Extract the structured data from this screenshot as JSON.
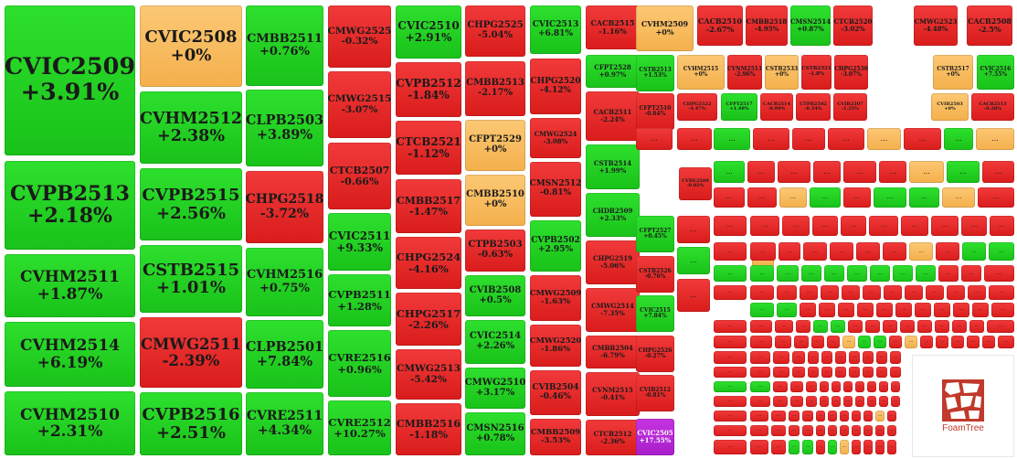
{
  "colors": {
    "green": "#22d022",
    "red": "#e62a2a",
    "orange": "#f8bd5e",
    "purple": "#b928d6"
  },
  "ellipsis": "...",
  "logo": {
    "label": "FoamTree",
    "icon": "foamtree-logo-icon"
  },
  "cells": [
    {
      "code": "CVIC2509",
      "change": "+3.91%",
      "color": "green"
    },
    {
      "code": "CVPB2513",
      "change": "+2.18%",
      "color": "green"
    },
    {
      "code": "CVHM2511",
      "change": "+1.87%",
      "color": "green"
    },
    {
      "code": "CVHM2514",
      "change": "+6.19%",
      "color": "green"
    },
    {
      "code": "CVHM2510",
      "change": "+2.31%",
      "color": "green"
    },
    {
      "code": "CVIC2508",
      "change": "+0%",
      "color": "orange"
    },
    {
      "code": "CVHM2512",
      "change": "+2.38%",
      "color": "green"
    },
    {
      "code": "CVPB2515",
      "change": "+2.56%",
      "color": "green"
    },
    {
      "code": "CSTB2515",
      "change": "+1.01%",
      "color": "green"
    },
    {
      "code": "CMWG2511",
      "change": "-2.39%",
      "color": "red"
    },
    {
      "code": "CVPB2516",
      "change": "+2.51%",
      "color": "green"
    },
    {
      "code": "CMBB2511",
      "change": "+0.76%",
      "color": "green"
    },
    {
      "code": "CLPB2503",
      "change": "+3.89%",
      "color": "green"
    },
    {
      "code": "CHPG2518",
      "change": "-3.72%",
      "color": "red"
    },
    {
      "code": "CVHM2516",
      "change": "+0.75%",
      "color": "green"
    },
    {
      "code": "CLPB2501",
      "change": "+7.84%",
      "color": "green"
    },
    {
      "code": "CVRE2511",
      "change": "+4.34%",
      "color": "green"
    },
    {
      "code": "CMWG2525",
      "change": "-0.32%",
      "color": "red"
    },
    {
      "code": "CMWG2515",
      "change": "-3.07%",
      "color": "red"
    },
    {
      "code": "CTCB2507",
      "change": "-0.66%",
      "color": "red"
    },
    {
      "code": "CVIC2511",
      "change": "+9.33%",
      "color": "green"
    },
    {
      "code": "CVPB2511",
      "change": "+1.28%",
      "color": "green"
    },
    {
      "code": "CVRE2516",
      "change": "+0.96%",
      "color": "green"
    },
    {
      "code": "CVRE2512",
      "change": "+10.27%",
      "color": "green"
    },
    {
      "code": "CVIC2510",
      "change": "+2.91%",
      "color": "green"
    },
    {
      "code": "CVPB2512",
      "change": "-1.84%",
      "color": "red"
    },
    {
      "code": "CTCB2521",
      "change": "-1.12%",
      "color": "red"
    },
    {
      "code": "CMBB2517",
      "change": "-1.47%",
      "color": "red"
    },
    {
      "code": "CHPG2524",
      "change": "-4.16%",
      "color": "red"
    },
    {
      "code": "CHPG2517",
      "change": "-2.26%",
      "color": "red"
    },
    {
      "code": "CMWG2513",
      "change": "-5.42%",
      "color": "red"
    },
    {
      "code": "CMBB2516",
      "change": "-1.18%",
      "color": "red"
    },
    {
      "code": "CHPG2525",
      "change": "-5.04%",
      "color": "red"
    },
    {
      "code": "CMBB2513",
      "change": "-2.17%",
      "color": "red"
    },
    {
      "code": "CFPT2529",
      "change": "+0%",
      "color": "orange"
    },
    {
      "code": "CMBB2510",
      "change": "+0%",
      "color": "orange"
    },
    {
      "code": "CTPB2503",
      "change": "-0.63%",
      "color": "red"
    },
    {
      "code": "CVIB2508",
      "change": "+0.5%",
      "color": "green"
    },
    {
      "code": "CVIC2514",
      "change": "+2.26%",
      "color": "green"
    },
    {
      "code": "CMWG2510",
      "change": "+3.17%",
      "color": "green"
    },
    {
      "code": "CMSN2516",
      "change": "+0.78%",
      "color": "green"
    },
    {
      "code": "CVIC2513",
      "change": "+6.81%",
      "color": "green"
    },
    {
      "code": "CHPG2520",
      "change": "-4.12%",
      "color": "red"
    },
    {
      "code": "CMWG2524",
      "change": "-3.08%",
      "color": "red"
    },
    {
      "code": "CMSN2512",
      "change": "-0.81%",
      "color": "red"
    },
    {
      "code": "CVPB2502",
      "change": "+2.95%",
      "color": "green"
    },
    {
      "code": "CMWG2509",
      "change": "-1.63%",
      "color": "red"
    },
    {
      "code": "CMWG2520",
      "change": "-1.86%",
      "color": "red"
    },
    {
      "code": "CVIB2504",
      "change": "-0.46%",
      "color": "red"
    },
    {
      "code": "CMBB2509",
      "change": "-3.53%",
      "color": "red"
    },
    {
      "code": "CACB2515",
      "change": "-1.16%",
      "color": "red"
    },
    {
      "code": "CFPT2528",
      "change": "+0.97%",
      "color": "green"
    },
    {
      "code": "CACB2511",
      "change": "-2.24%",
      "color": "red"
    },
    {
      "code": "CSTB2514",
      "change": "+1.99%",
      "color": "green"
    },
    {
      "code": "CHDB2509",
      "change": "+2.33%",
      "color": "green"
    },
    {
      "code": "CHPG2519",
      "change": "-5.06%",
      "color": "red"
    },
    {
      "code": "CMWG2514",
      "change": "-7.35%",
      "color": "red"
    },
    {
      "code": "CMBB2504",
      "change": "-6.79%",
      "color": "red"
    },
    {
      "code": "CVNM2515",
      "change": "-0.41%",
      "color": "red"
    },
    {
      "code": "CTCB2512",
      "change": "-2.36%",
      "color": "red"
    },
    {
      "code": "CVHM2509",
      "change": "+0%",
      "color": "orange"
    },
    {
      "code": "CSTB2513",
      "change": "+1.53%",
      "color": "green"
    },
    {
      "code": "CFPT2510",
      "change": "-0.64%",
      "color": "red"
    },
    {
      "code": "CFPT2527",
      "change": "+0.45%",
      "color": "green"
    },
    {
      "code": "CSTB2526",
      "change": "-0.76%",
      "color": "red"
    },
    {
      "code": "CVIC2515",
      "change": "+7.84%",
      "color": "green"
    },
    {
      "code": "CHPG2526",
      "change": "-0.27%",
      "color": "red"
    },
    {
      "code": "CVIB2512",
      "change": "-0.81%",
      "color": "red"
    },
    {
      "code": "CVIC2505",
      "change": "+17.55%",
      "color": "purple"
    },
    {
      "code": "CACB2510",
      "change": "-2.67%",
      "color": "red"
    },
    {
      "code": "CMBB2518",
      "change": "-4.95%",
      "color": "red"
    },
    {
      "code": "CMSN2514",
      "change": "+0.87%",
      "color": "green"
    },
    {
      "code": "CTCB2520",
      "change": "-3.02%",
      "color": "red"
    },
    {
      "code": "CMWG2523",
      "change": "-4.48%",
      "color": "red"
    },
    {
      "code": "CACB2508",
      "change": "-2.5%",
      "color": "red"
    },
    {
      "code": "CVHM2515",
      "change": "+0%",
      "color": "orange"
    },
    {
      "code": "CVNM2511",
      "change": "-2.96%",
      "color": "red"
    },
    {
      "code": "CSTB2533",
      "change": "+0%",
      "color": "orange"
    },
    {
      "code": "CSTB2521",
      "change": "-1.8%",
      "color": "red"
    },
    {
      "code": "CHPG2530",
      "change": "-3.07%",
      "color": "red"
    },
    {
      "code": "CSTB2517",
      "change": "+0%",
      "color": "orange"
    },
    {
      "code": "CVIC2516",
      "change": "+7.55%",
      "color": "green"
    },
    {
      "code": "CHPG2522",
      "change": "-4.47%",
      "color": "red"
    },
    {
      "code": "CFPT2517",
      "change": "+1.48%",
      "color": "green"
    },
    {
      "code": "CACB2514",
      "change": "-0.99%",
      "color": "red"
    },
    {
      "code": "CTPB2502",
      "change": "-0.34%",
      "color": "red"
    },
    {
      "code": "CVIB2507",
      "change": "-1.25%",
      "color": "red"
    },
    {
      "code": "CVIB2503",
      "change": "+0%",
      "color": "orange"
    },
    {
      "code": "CACB2513",
      "change": "-0.28%",
      "color": "red"
    },
    {
      "code": "CVRE2509",
      "change": "-0.02%",
      "color": "red"
    }
  ],
  "small_cells": [
    "red",
    "orange",
    "red",
    "green",
    "red",
    "red",
    "green",
    "red",
    "red",
    "red",
    "orange",
    "red",
    "green",
    "orange",
    "green",
    "red",
    "red",
    "red",
    "red",
    "red",
    "orange",
    "green",
    "red",
    "red",
    "red",
    "orange",
    "green",
    "red",
    "green",
    "green",
    "orange",
    "red",
    "red",
    "red",
    "red",
    "red",
    "red",
    "red",
    "red",
    "red",
    "red",
    "red",
    "red",
    "red",
    "red",
    "red",
    "red",
    "red",
    "red",
    "orange",
    "red",
    "green",
    "green",
    "green",
    "green",
    "green",
    "green",
    "green",
    "green",
    "green",
    "green",
    "green",
    "red",
    "red",
    "red",
    "red",
    "red",
    "red",
    "red",
    "red",
    "red",
    "red",
    "red",
    "red",
    "red",
    "red",
    "red",
    "red",
    "green",
    "green",
    "red",
    "red",
    "red",
    "red",
    "red",
    "red",
    "red",
    "red",
    "red",
    "red",
    "red",
    "red",
    "red",
    "red",
    "red",
    "green",
    "green",
    "red",
    "red",
    "red",
    "red",
    "red",
    "red",
    "red",
    "red",
    "red",
    "red",
    "red",
    "red",
    "red",
    "red",
    "red",
    "orange",
    "green",
    "green",
    "red",
    "orange",
    "red",
    "red",
    "red",
    "red",
    "red",
    "red",
    "red",
    "red",
    "red",
    "red",
    "red",
    "red",
    "red",
    "red",
    "red",
    "red",
    "red",
    "red",
    "red",
    "red",
    "red",
    "red",
    "red",
    "red",
    "red",
    "red",
    "red",
    "red",
    "red",
    "green",
    "green",
    "red",
    "red",
    "red",
    "red",
    "red",
    "red",
    "red",
    "red",
    "red",
    "red",
    "red",
    "red",
    "red",
    "red",
    "red",
    "red",
    "red",
    "red",
    "red",
    "red",
    "red",
    "red",
    "red",
    "red",
    "red",
    "red",
    "red",
    "red",
    "red",
    "red",
    "red",
    "red",
    "orange",
    "red",
    "red",
    "red",
    "red",
    "red",
    "red",
    "red",
    "red",
    "red",
    "red",
    "red",
    "red",
    "red",
    "red",
    "red",
    "red",
    "green",
    "green",
    "red",
    "green",
    "orange",
    "red",
    "red",
    "red",
    "red",
    "red",
    "red",
    "red",
    "red",
    "red",
    "red",
    "red",
    "red",
    "red",
    "red",
    "red",
    "red",
    "red",
    "red",
    "red",
    "red",
    "red",
    "red",
    "red",
    "red",
    "red",
    "red",
    "red",
    "red",
    "red",
    "purple",
    "purple",
    "orange",
    "red",
    "red",
    "red",
    "red",
    "red",
    "red",
    "red",
    "red",
    "red",
    "red",
    "red",
    "red",
    "red",
    "red",
    "green",
    "red",
    "green",
    "red",
    "red",
    "green",
    "green",
    "red",
    "red",
    "red",
    "red",
    "red",
    "red",
    "red",
    "red",
    "red",
    "red",
    "orange",
    "orange",
    "green",
    "green",
    "green",
    "red",
    "green",
    "red",
    "red",
    "red",
    "red",
    "red",
    "red",
    "red",
    "red",
    "red",
    "red",
    "green",
    "orange",
    "green",
    "green",
    "green",
    "green",
    "red",
    "green",
    "red",
    "red",
    "red",
    "red",
    "red",
    "red",
    "red",
    "red",
    "red",
    "red",
    "orange",
    "green",
    "green",
    "green",
    "green",
    "red",
    "red",
    "red",
    "red",
    "red",
    "red",
    "red",
    "red",
    "red",
    "red",
    "red"
  ]
}
